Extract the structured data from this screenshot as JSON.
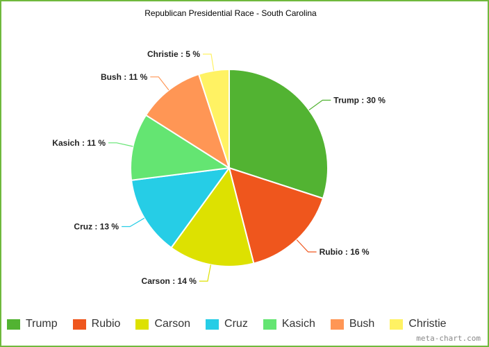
{
  "page": {
    "watermark": "meta-chart.com"
  },
  "chart_data": {
    "type": "pie",
    "title": "Republican Presidential Race - South Carolina",
    "legend_position": "bottom",
    "slices": [
      {
        "name": "Trump",
        "value": 30,
        "color": "#52b332"
      },
      {
        "name": "Rubio",
        "value": 16,
        "color": "#ef561d"
      },
      {
        "name": "Carson",
        "value": 14,
        "color": "#dde101"
      },
      {
        "name": "Cruz",
        "value": 13,
        "color": "#26cde6"
      },
      {
        "name": "Kasich",
        "value": 11,
        "color": "#64e572"
      },
      {
        "name": "Bush",
        "value": 11,
        "color": "#ff9655"
      },
      {
        "name": "Christie",
        "value": 5,
        "color": "#fff263"
      }
    ],
    "label_format": "{name} : {value} %"
  }
}
